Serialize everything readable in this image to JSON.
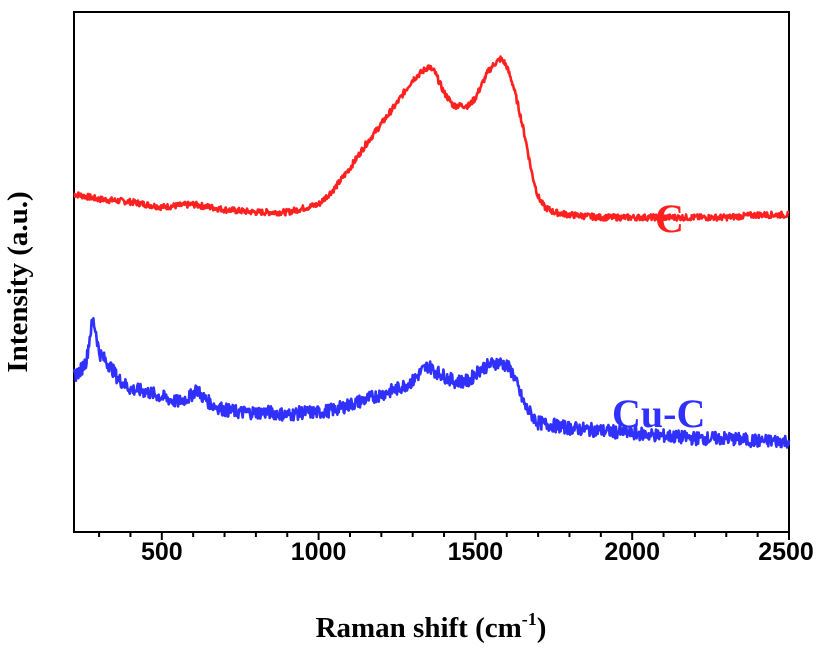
{
  "chart_data": {
    "type": "line",
    "xlabel": "Raman shift (cm",
    "xlabel_sup": "-1",
    "xlabel_close": ")",
    "ylabel": "Intensity (a.u.)",
    "xlim": [
      220,
      2500
    ],
    "ylim": [
      0,
      10
    ],
    "x_ticks": [
      500,
      1000,
      1500,
      2000,
      2500
    ],
    "x_tick_labels": [
      "500",
      "1000",
      "1500",
      "2000",
      "2500"
    ],
    "y_ticks_shown": false,
    "grid": false,
    "series": [
      {
        "name": "C",
        "color": "#ff2020",
        "x": [
          220,
          300,
          400,
          500,
          600,
          700,
          800,
          900,
          1000,
          1050,
          1100,
          1150,
          1200,
          1250,
          1300,
          1330,
          1350,
          1370,
          1400,
          1430,
          1460,
          1480,
          1500,
          1520,
          1540,
          1560,
          1580,
          1590,
          1600,
          1620,
          1640,
          1660,
          1680,
          1700,
          1720,
          1750,
          1800,
          1900,
          2000,
          2100,
          2200,
          2300,
          2400,
          2500
        ],
        "y": [
          6.5,
          6.4,
          6.35,
          6.25,
          6.3,
          6.2,
          6.15,
          6.15,
          6.3,
          6.6,
          7.0,
          7.45,
          7.85,
          8.25,
          8.7,
          8.85,
          8.95,
          8.85,
          8.45,
          8.2,
          8.2,
          8.2,
          8.35,
          8.6,
          8.85,
          9.0,
          9.1,
          9.05,
          8.95,
          8.6,
          8.1,
          7.55,
          6.9,
          6.45,
          6.25,
          6.15,
          6.1,
          6.05,
          6.05,
          6.05,
          6.05,
          6.05,
          6.1,
          6.1
        ]
      },
      {
        "name": "Cu-C",
        "color": "#3030ff",
        "x": [
          220,
          240,
          260,
          270,
          280,
          290,
          300,
          320,
          340,
          360,
          400,
          450,
          500,
          550,
          590,
          610,
          630,
          660,
          700,
          750,
          800,
          850,
          900,
          950,
          1000,
          1050,
          1100,
          1150,
          1200,
          1250,
          1300,
          1330,
          1350,
          1370,
          1400,
          1430,
          1460,
          1480,
          1500,
          1520,
          1540,
          1560,
          1580,
          1600,
          1620,
          1640,
          1660,
          1680,
          1700,
          1750,
          1800,
          1900,
          2000,
          2100,
          2200,
          2300,
          2400,
          2500
        ],
        "y": [
          3.0,
          3.1,
          3.3,
          3.75,
          4.1,
          3.85,
          3.45,
          3.3,
          3.15,
          2.95,
          2.75,
          2.7,
          2.6,
          2.5,
          2.6,
          2.75,
          2.6,
          2.45,
          2.35,
          2.3,
          2.3,
          2.3,
          2.25,
          2.3,
          2.3,
          2.35,
          2.45,
          2.55,
          2.65,
          2.75,
          2.9,
          3.1,
          3.2,
          3.1,
          3.0,
          2.9,
          2.9,
          2.9,
          3.05,
          3.15,
          3.2,
          3.25,
          3.25,
          3.2,
          3.05,
          2.7,
          2.4,
          2.25,
          2.1,
          2.05,
          2.0,
          1.95,
          1.9,
          1.85,
          1.8,
          1.8,
          1.75,
          1.75
        ]
      }
    ]
  }
}
